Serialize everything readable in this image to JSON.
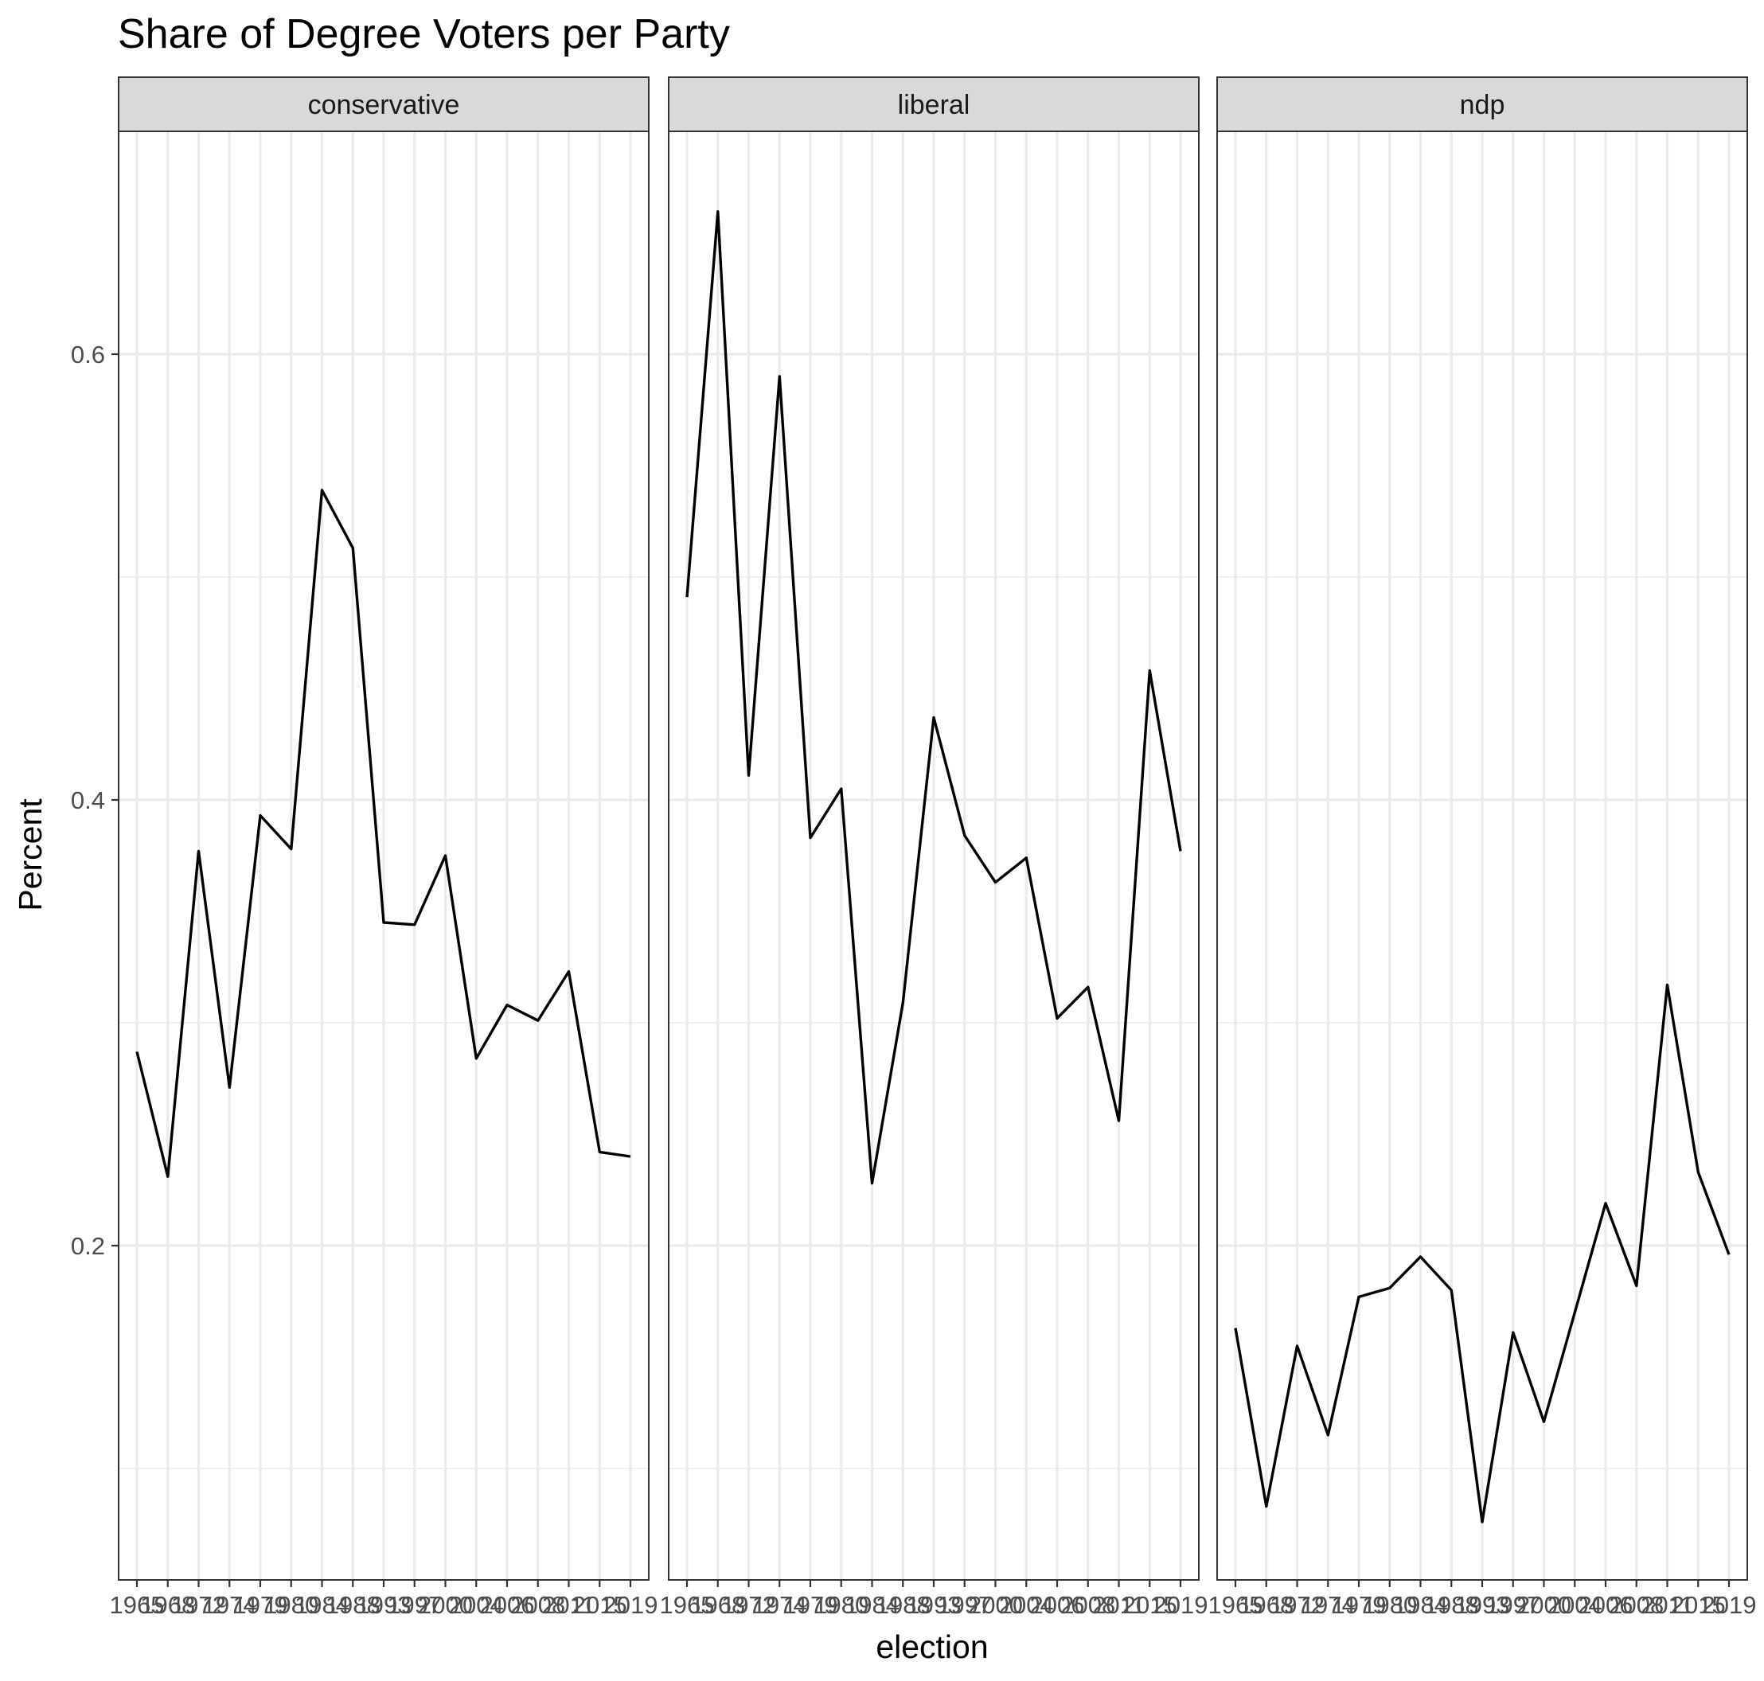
{
  "chart_data": {
    "type": "line",
    "title": "Share of Degree Voters per Party",
    "xlabel": "election",
    "ylabel": "Percent",
    "ylim": [
      0.05,
      0.7
    ],
    "y_ticks": [
      "0.2",
      "0.4",
      "0.6"
    ],
    "grid": true,
    "legend": "none",
    "facet_by": "party",
    "x": [
      "1965",
      "1968",
      "1972",
      "1974",
      "1979",
      "1980",
      "1984",
      "1988",
      "1993",
      "1997",
      "2000",
      "2004",
      "2006",
      "2008",
      "2011",
      "2015",
      "2019"
    ],
    "series": [
      {
        "name": "conservative",
        "values": [
          0.287,
          0.231,
          0.377,
          0.271,
          0.393,
          0.378,
          0.539,
          0.513,
          0.345,
          0.344,
          0.375,
          0.284,
          0.308,
          0.301,
          0.323,
          0.242,
          0.24
        ]
      },
      {
        "name": "liberal",
        "values": [
          0.491,
          0.664,
          0.411,
          0.59,
          0.383,
          0.405,
          0.228,
          0.309,
          0.437,
          0.384,
          0.363,
          0.374,
          0.302,
          0.316,
          0.256,
          0.458,
          0.377
        ]
      },
      {
        "name": "ndp",
        "values": [
          0.163,
          0.083,
          0.155,
          0.115,
          0.177,
          0.181,
          0.195,
          0.18,
          0.076,
          0.161,
          0.121,
          0.17,
          0.219,
          0.182,
          0.317,
          0.233,
          0.196
        ]
      }
    ]
  }
}
